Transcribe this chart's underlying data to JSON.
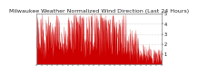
{
  "title": "Milwaukee Weather Normalized Wind Direction (Last 24 Hours)",
  "background_color": "#ffffff",
  "plot_bg_color": "#ffffff",
  "line_color": "#cc0000",
  "grid_color": "#bbbbbb",
  "title_fontsize": 4.5,
  "tick_fontsize": 3.5,
  "ylim": [
    0,
    5
  ],
  "yticks": [
    1,
    2,
    3,
    4,
    5
  ],
  "n_points": 480,
  "seed": 7
}
